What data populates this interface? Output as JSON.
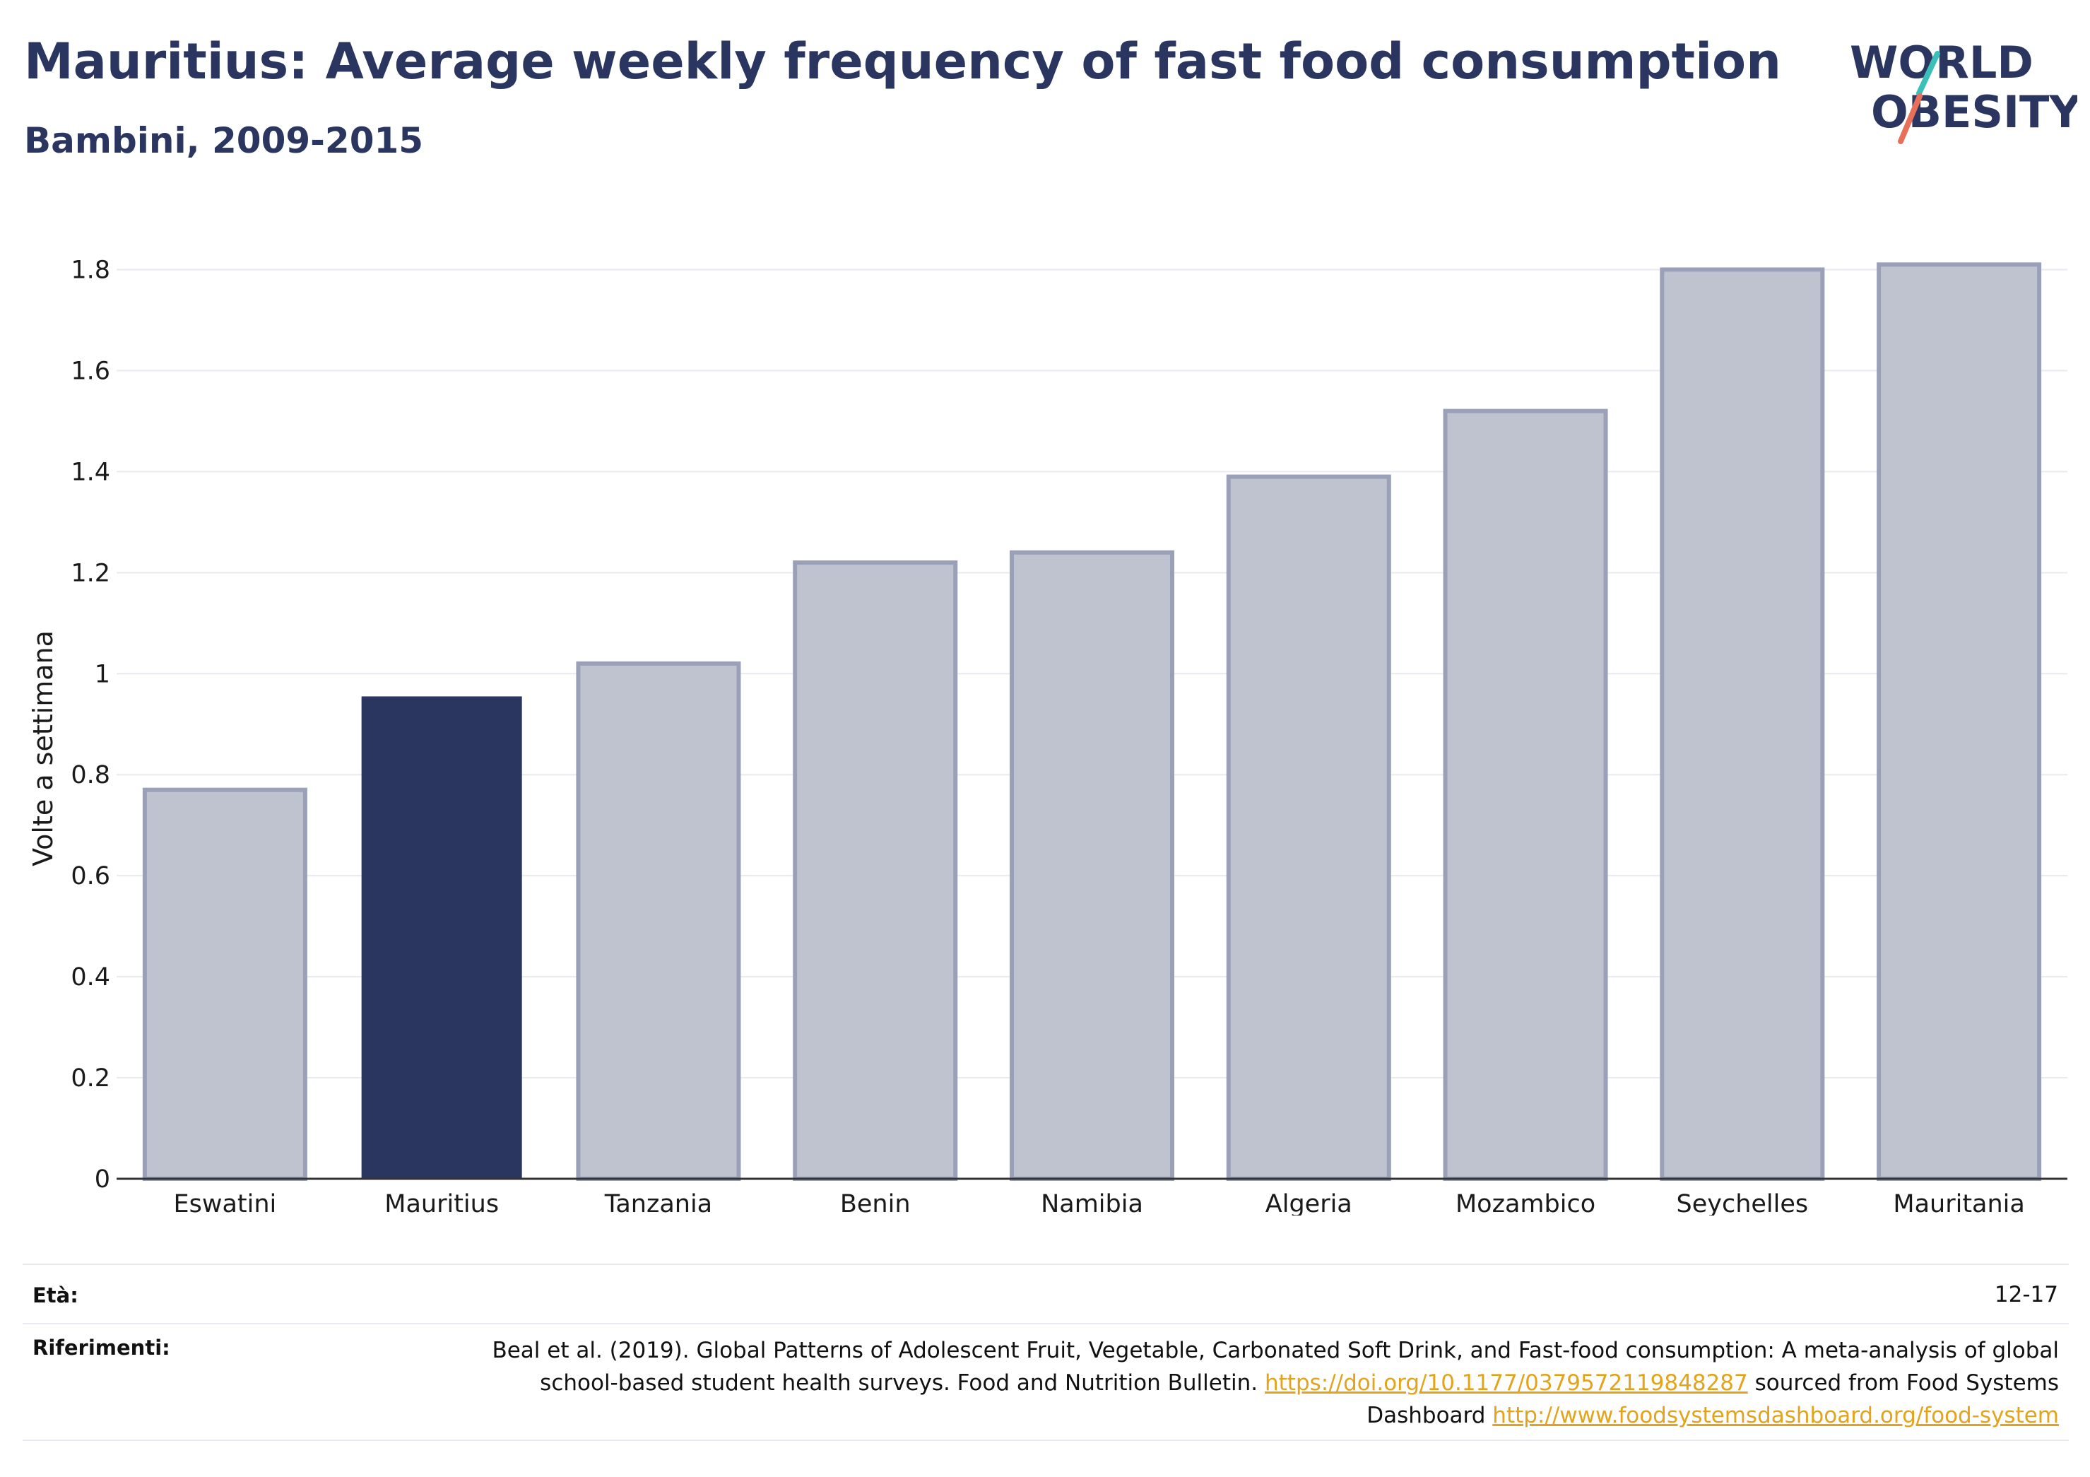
{
  "header": {
    "title": "Mauritius: Average weekly frequency of fast food consumption",
    "subtitle": "Bambini, 2009-2015"
  },
  "logo": {
    "line1": "WORLD",
    "line2": "OBESITY",
    "text_color": "#2b3660",
    "slash_teal": "#3bbfb9",
    "slash_coral": "#e8705a"
  },
  "chart_data": {
    "type": "bar",
    "categories": [
      "Eswatini",
      "Mauritius",
      "Tanzania",
      "Benin",
      "Namibia",
      "Algeria",
      "Mozambico",
      "Seychelles",
      "Mauritania"
    ],
    "values": [
      0.77,
      0.955,
      1.02,
      1.22,
      1.24,
      1.39,
      1.52,
      1.8,
      1.81
    ],
    "highlight": "Mauritius",
    "ylabel": "Volte a settimana",
    "xlabel": "",
    "ylim": [
      0,
      1.9
    ],
    "yticks": [
      0,
      0.2,
      0.4,
      0.6,
      0.8,
      1,
      1.2,
      1.4,
      1.6,
      1.8
    ],
    "ytick_labels": [
      "0",
      "0.2",
      "0.4",
      "0.6",
      "0.8",
      "1",
      "1.2",
      "1.4",
      "1.6",
      "1.8"
    ],
    "grid": true,
    "colors": {
      "bar": "#bfc3cf",
      "bar_border": "#9aa0b8",
      "highlight": "#2b3660",
      "grid": "#e8eaf0",
      "axis": "#333333"
    }
  },
  "footer": {
    "age_key": "Età:",
    "age_value": "12-17",
    "ref_key": "Riferimenti:",
    "ref_text1": "Beal et al. (2019). Global Patterns of Adolescent Fruit, Vegetable, Carbonated Soft Drink, and Fast-food consumption: A meta-analysis of global school-based student health surveys. Food and Nutrition Bulletin.",
    "ref_link1": "https://doi.org/10.1177/0379572119848287",
    "ref_text2": "sourced from Food Systems Dashboard",
    "ref_link2": "http://www.foodsystemsdashboard.org/food-system"
  }
}
